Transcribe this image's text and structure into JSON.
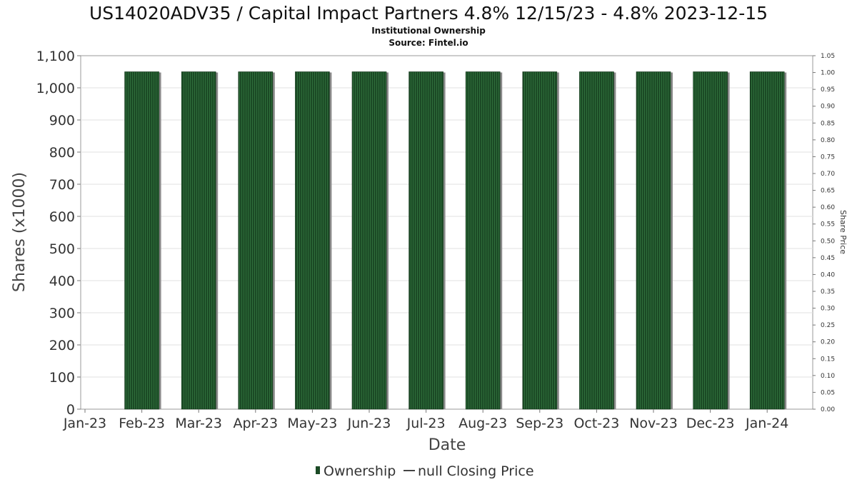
{
  "chart_data": {
    "type": "bar",
    "title": "US14020ADV35 / Capital Impact Partners 4.8% 12/15/23 - 4.8% 2023-12-15",
    "subtitle_lines": [
      "Institutional Ownership",
      "Source: Fintel.io"
    ],
    "xlabel": "Date",
    "ylabel": "Shares (x1000)",
    "y2label": "Share Price",
    "x_ticks": [
      "Jan-23",
      "Feb-23",
      "Mar-23",
      "Apr-23",
      "May-23",
      "Jun-23",
      "Jul-23",
      "Aug-23",
      "Sep-23",
      "Oct-23",
      "Nov-23",
      "Dec-23",
      "Jan-24"
    ],
    "categories": [
      "Feb-23",
      "Mar-23",
      "Apr-23",
      "May-23",
      "Jun-23",
      "Jul-23",
      "Aug-23",
      "Sep-23",
      "Oct-23",
      "Nov-23",
      "Dec-23",
      "Jan-24"
    ],
    "series": [
      {
        "name": "Ownership",
        "values": [
          1050,
          1050,
          1050,
          1050,
          1050,
          1050,
          1050,
          1050,
          1050,
          1050,
          1050,
          1050
        ]
      }
    ],
    "ylim": [
      0,
      1100
    ],
    "y_ticks": [
      "0",
      "100",
      "200",
      "300",
      "400",
      "500",
      "600",
      "700",
      "800",
      "900",
      "1,000",
      "1,100"
    ],
    "y2lim": [
      0,
      1.05
    ],
    "y2_ticks": [
      "0.00",
      "0.05",
      "0.10",
      "0.15",
      "0.20",
      "0.25",
      "0.30",
      "0.35",
      "0.40",
      "0.45",
      "0.50",
      "0.55",
      "0.60",
      "0.65",
      "0.70",
      "0.75",
      "0.80",
      "0.85",
      "0.90",
      "0.95",
      "1.00",
      "1.05"
    ],
    "grid": true,
    "legend": {
      "placement": "bottom-center",
      "entries": [
        {
          "label": "Ownership",
          "color": "#1b4a25"
        },
        {
          "label": "null Closing Price",
          "color": "#444444"
        }
      ]
    },
    "colors": {
      "bar": "#1b4a25",
      "bar_stripe": "#2f6e3b",
      "bar_shadow": "#8a8a8a"
    }
  }
}
